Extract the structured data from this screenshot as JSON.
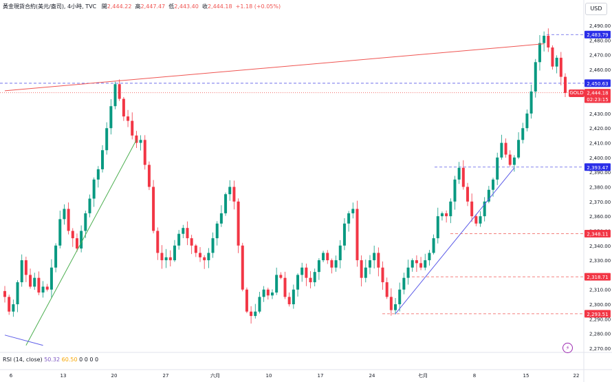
{
  "header": {
    "title": "黃金現貨合約(美元/盎司), 4小時, TVC",
    "open_label": "開",
    "open_value": "2,444.22",
    "high_label": "高",
    "high_value": "2,447.47",
    "low_label": "低",
    "low_value": "2,443.40",
    "close_label": "收",
    "close_value": "2,444.18",
    "change": "+1.18 (+0.05%)"
  },
  "currency_button": "USD",
  "symbol_tag": "GOLD",
  "indicator": {
    "name": "RSI (14, close)",
    "v1": "50.32",
    "v2": "60.50",
    "v3": "0 0 0 0"
  },
  "colors": {
    "up": "#089981",
    "down": "#f23645",
    "blue_line": "#2962ff",
    "red_line": "#ef5350",
    "green_line": "#4caf50",
    "purple_line": "#5b5be8"
  },
  "chart_data": {
    "type": "candlestick",
    "ylim": [
      2264,
      2496
    ],
    "y_ticks": [
      "2,270.00",
      "2,280.00",
      "2,290.00",
      "2,300.00",
      "2,310.00",
      "2,320.00",
      "2,330.00",
      "2,340.00",
      "2,350.00",
      "2,360.00",
      "2,370.00",
      "2,380.00",
      "2,390.00",
      "2,400.00",
      "2,410.00",
      "2,420.00",
      "2,430.00",
      "2,440.00",
      "2,450.00",
      "2,460.00",
      "2,470.00",
      "2,480.00",
      "2,490.00"
    ],
    "x_ticks": [
      "6",
      "13",
      "20",
      "27",
      "六月",
      "10",
      "17",
      "24",
      "七月",
      "8",
      "15",
      "22"
    ],
    "price_labels": [
      {
        "text": "2,483.79",
        "value": 2483.79,
        "style": "blue"
      },
      {
        "text": "2,450.63",
        "value": 2450.63,
        "style": "blue"
      },
      {
        "text": "2,444.18",
        "value": 2444.18,
        "style": "red"
      },
      {
        "text": "02:23:15",
        "value": 2439.8,
        "style": "red"
      },
      {
        "text": "2,393.47",
        "value": 2393.47,
        "style": "blue"
      },
      {
        "text": "2,348.11",
        "value": 2348.11,
        "style": "red"
      },
      {
        "text": "2,318.71",
        "value": 2318.71,
        "style": "red"
      },
      {
        "text": "2,293.51",
        "value": 2293.51,
        "style": "red"
      }
    ],
    "close_path": [
      2305,
      2295,
      2300,
      2315,
      2330,
      2320,
      2312,
      2318,
      2308,
      2312,
      2310,
      2325,
      2340,
      2358,
      2365,
      2350,
      2345,
      2338,
      2350,
      2362,
      2372,
      2385,
      2392,
      2405,
      2420,
      2435,
      2450,
      2440,
      2428,
      2425,
      2415,
      2410,
      2412,
      2395,
      2380,
      2350,
      2335,
      2330,
      2332,
      2330,
      2340,
      2348,
      2352,
      2345,
      2340,
      2335,
      2332,
      2330,
      2335,
      2345,
      2355,
      2362,
      2375,
      2380,
      2370,
      2340,
      2310,
      2295,
      2292,
      2295,
      2305,
      2310,
      2306,
      2308,
      2320,
      2318,
      2305,
      2300,
      2310,
      2320,
      2325,
      2318,
      2315,
      2322,
      2330,
      2335,
      2330,
      2325,
      2330,
      2340,
      2355,
      2362,
      2365,
      2330,
      2318,
      2325,
      2330,
      2335,
      2325,
      2315,
      2305,
      2296,
      2300,
      2310,
      2318,
      2325,
      2330,
      2328,
      2325,
      2330,
      2335,
      2345,
      2360,
      2362,
      2360,
      2370,
      2385,
      2393,
      2380,
      2370,
      2360,
      2355,
      2360,
      2370,
      2378,
      2385,
      2400,
      2410,
      2402,
      2395,
      2400,
      2412,
      2420,
      2430,
      2445,
      2465,
      2478,
      2483,
      2475,
      2462,
      2468,
      2455,
      2444
    ],
    "overlays": [
      {
        "kind": "line",
        "color": "red",
        "from": [
          0,
          2445.5
        ],
        "to": [
          127,
          2477.5
        ]
      },
      {
        "kind": "line",
        "color": "green",
        "from": [
          5,
          2272
        ],
        "to": [
          31,
          2412
        ]
      },
      {
        "kind": "line",
        "color": "purple",
        "from": [
          92,
          2293.5
        ],
        "to": [
          120,
          2393
        ]
      },
      {
        "kind": "line",
        "color": "purple",
        "from": [
          0,
          2279
        ],
        "to": [
          9,
          2272
        ]
      }
    ]
  }
}
